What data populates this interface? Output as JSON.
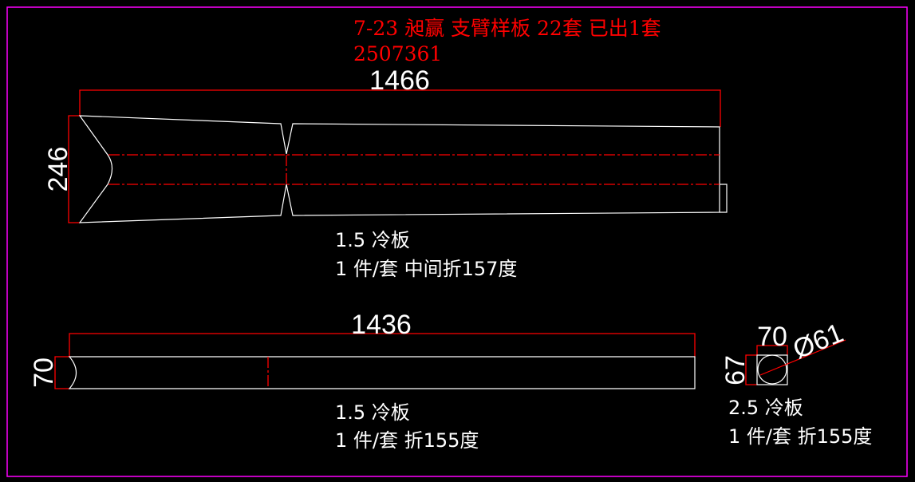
{
  "colors": {
    "background": "#000000",
    "frame": "#ff00ff",
    "geometry": "#ffffff",
    "dimension": "#ff0000",
    "title": "#ff0000"
  },
  "header": {
    "title": "7-23 昶赢 支臂样板  22套  已出1套",
    "code": "2507361"
  },
  "parts": [
    {
      "width_dim": "1466",
      "height_dim": "246",
      "material": "1.5 冷板",
      "note": "1 件/套 中间折157度"
    },
    {
      "width_dim": "1436",
      "height_dim": "70",
      "material": "1.5 冷板",
      "note": "1 件/套 折155度"
    },
    {
      "width_dim": "70",
      "height_dim": "67",
      "diameter_dim": "Ø61",
      "material": "2.5 冷板",
      "note": "1 件/套 折155度"
    }
  ]
}
